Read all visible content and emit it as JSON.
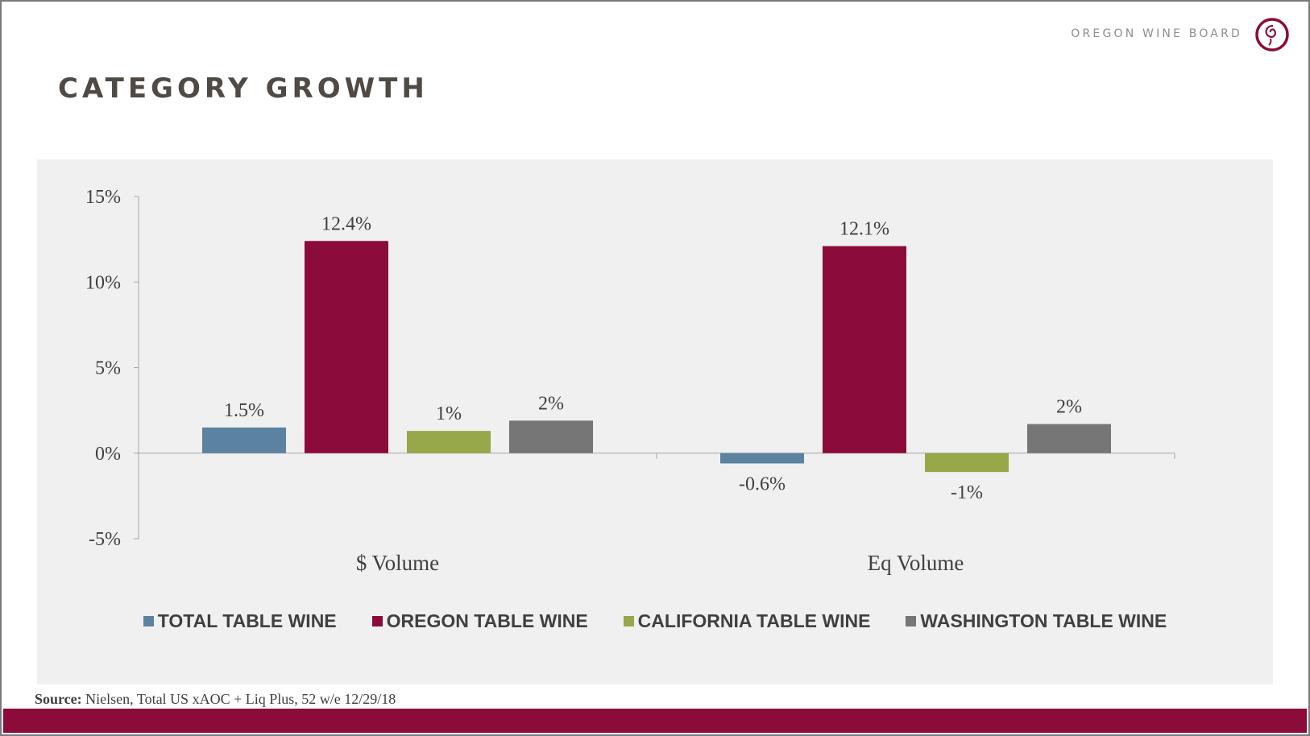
{
  "brand": {
    "name": "OREGON WINE BOARD"
  },
  "slide": {
    "title": "CATEGORY GROWTH"
  },
  "source": {
    "label": "Source:",
    "text": " Nielsen, Total US xAOC + Liq Plus, 52 w/e 12/29/18"
  },
  "colors": {
    "accent": "#8b0b3a",
    "series": [
      "#5b82a0",
      "#8b0b3a",
      "#97a84a",
      "#767676"
    ]
  },
  "chart_data": {
    "type": "bar",
    "categories": [
      "$ Volume",
      "Eq Volume"
    ],
    "series": [
      {
        "name": "TOTAL TABLE WINE",
        "values": [
          1.5,
          -0.6
        ],
        "labels": [
          "1.5%",
          "-0.6%"
        ]
      },
      {
        "name": "OREGON TABLE WINE",
        "values": [
          12.4,
          12.1
        ],
        "labels": [
          "12.4%",
          "12.1%"
        ]
      },
      {
        "name": "CALIFORNIA TABLE WINE",
        "values": [
          1.3,
          -1.1
        ],
        "labels": [
          "1%",
          "-1%"
        ]
      },
      {
        "name": "WASHINGTON TABLE WINE",
        "values": [
          1.9,
          1.7
        ],
        "labels": [
          "2%",
          "2%"
        ]
      }
    ],
    "yticks": [
      "15%",
      "10%",
      "5%",
      "0%",
      "-5%"
    ],
    "ytick_values": [
      15,
      10,
      5,
      0,
      -5
    ],
    "ylim": [
      -5,
      15
    ],
    "grid": false,
    "legend_position": "bottom"
  }
}
